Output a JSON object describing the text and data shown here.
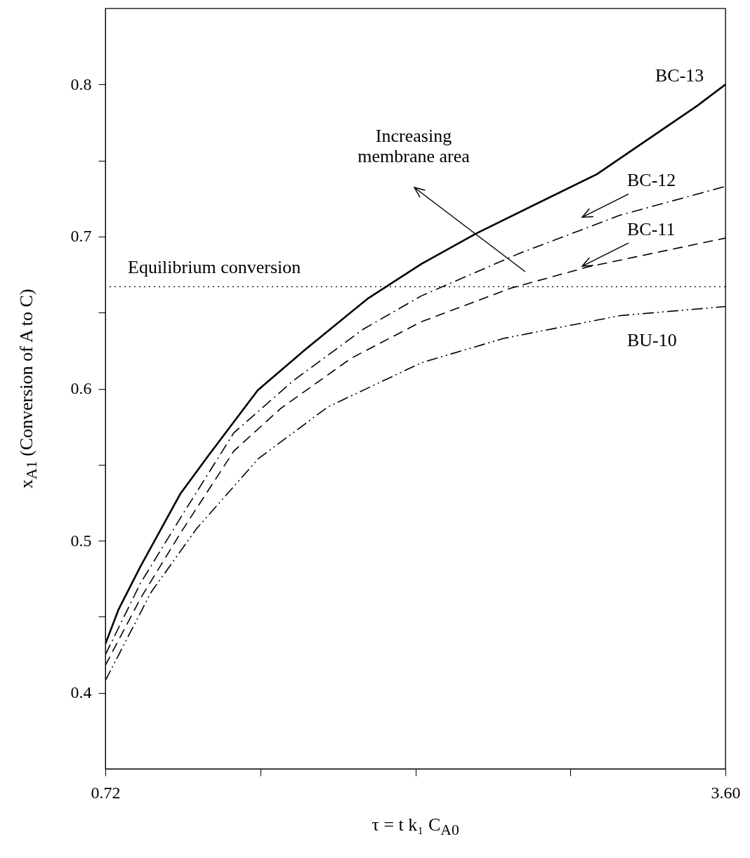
{
  "chart_data": {
    "type": "line",
    "xlabel": "τ = t k₁ C$_{A0}$",
    "ylabel": "x$_{A1}$  (Conversion of A to C)",
    "xlim": [
      0.72,
      3.6
    ],
    "xticks": [
      0.72,
      {
        "value": 1.44,
        "label": null
      },
      {
        "value": 2.16,
        "label": null
      },
      {
        "value": 2.88,
        "label": null
      },
      {
        "value": 3.6,
        "label": "3.60"
      }
    ],
    "ylim": [
      0.35,
      0.85
    ],
    "yticks": [
      0.4,
      {
        "value": 0.45,
        "label": null
      },
      0.5,
      {
        "value": 0.55,
        "label": null
      },
      0.6,
      {
        "value": 0.65,
        "label": null
      },
      0.7,
      {
        "value": 0.75,
        "label": null
      },
      0.8
    ],
    "grid": false,
    "marker": "none",
    "series": [
      {
        "name": "BC-13",
        "color": "#000000",
        "line_style": "solid",
        "x": [
          0.72,
          0.782,
          0.883,
          1.069,
          1.199,
          1.428,
          1.643,
          1.937,
          2.188,
          2.442,
          3.003,
          3.469,
          3.6
        ],
        "values": [
          0.432,
          0.455,
          0.483,
          0.531,
          0.556,
          0.599,
          0.625,
          0.659,
          0.682,
          0.702,
          0.741,
          0.786,
          0.8
        ]
      },
      {
        "name": "BC-12",
        "color": "#000000",
        "line_style": "dashdot",
        "x": [
          0.72,
          0.883,
          1.069,
          1.317,
          1.591,
          1.917,
          2.188,
          2.644,
          3.11,
          3.6
        ],
        "values": [
          0.425,
          0.472,
          0.515,
          0.571,
          0.605,
          0.639,
          0.661,
          0.689,
          0.714,
          0.733
        ]
      },
      {
        "name": "BC-11",
        "color": "#000000",
        "line_style": "dashed",
        "x": [
          0.72,
          0.883,
          1.069,
          1.317,
          1.535,
          1.862,
          2.188,
          2.602,
          2.96,
          3.6
        ],
        "values": [
          0.418,
          0.462,
          0.505,
          0.559,
          0.587,
          0.62,
          0.644,
          0.666,
          0.68,
          0.699
        ]
      },
      {
        "name": "BU-10",
        "color": "#000000",
        "line_style": "dashdotdot",
        "x": [
          0.72,
          0.932,
          1.144,
          1.431,
          1.754,
          2.188,
          2.569,
          3.11,
          3.6
        ],
        "values": [
          0.408,
          0.466,
          0.508,
          0.554,
          0.588,
          0.617,
          0.633,
          0.648,
          0.654
        ]
      }
    ],
    "ref_lines": [
      {
        "axis": "y",
        "value": 0.667,
        "label": "Equilibrium conversion",
        "color": "#000000",
        "line_style": "dotted"
      }
    ],
    "annotations": [
      "Increasing membrane area"
    ]
  }
}
